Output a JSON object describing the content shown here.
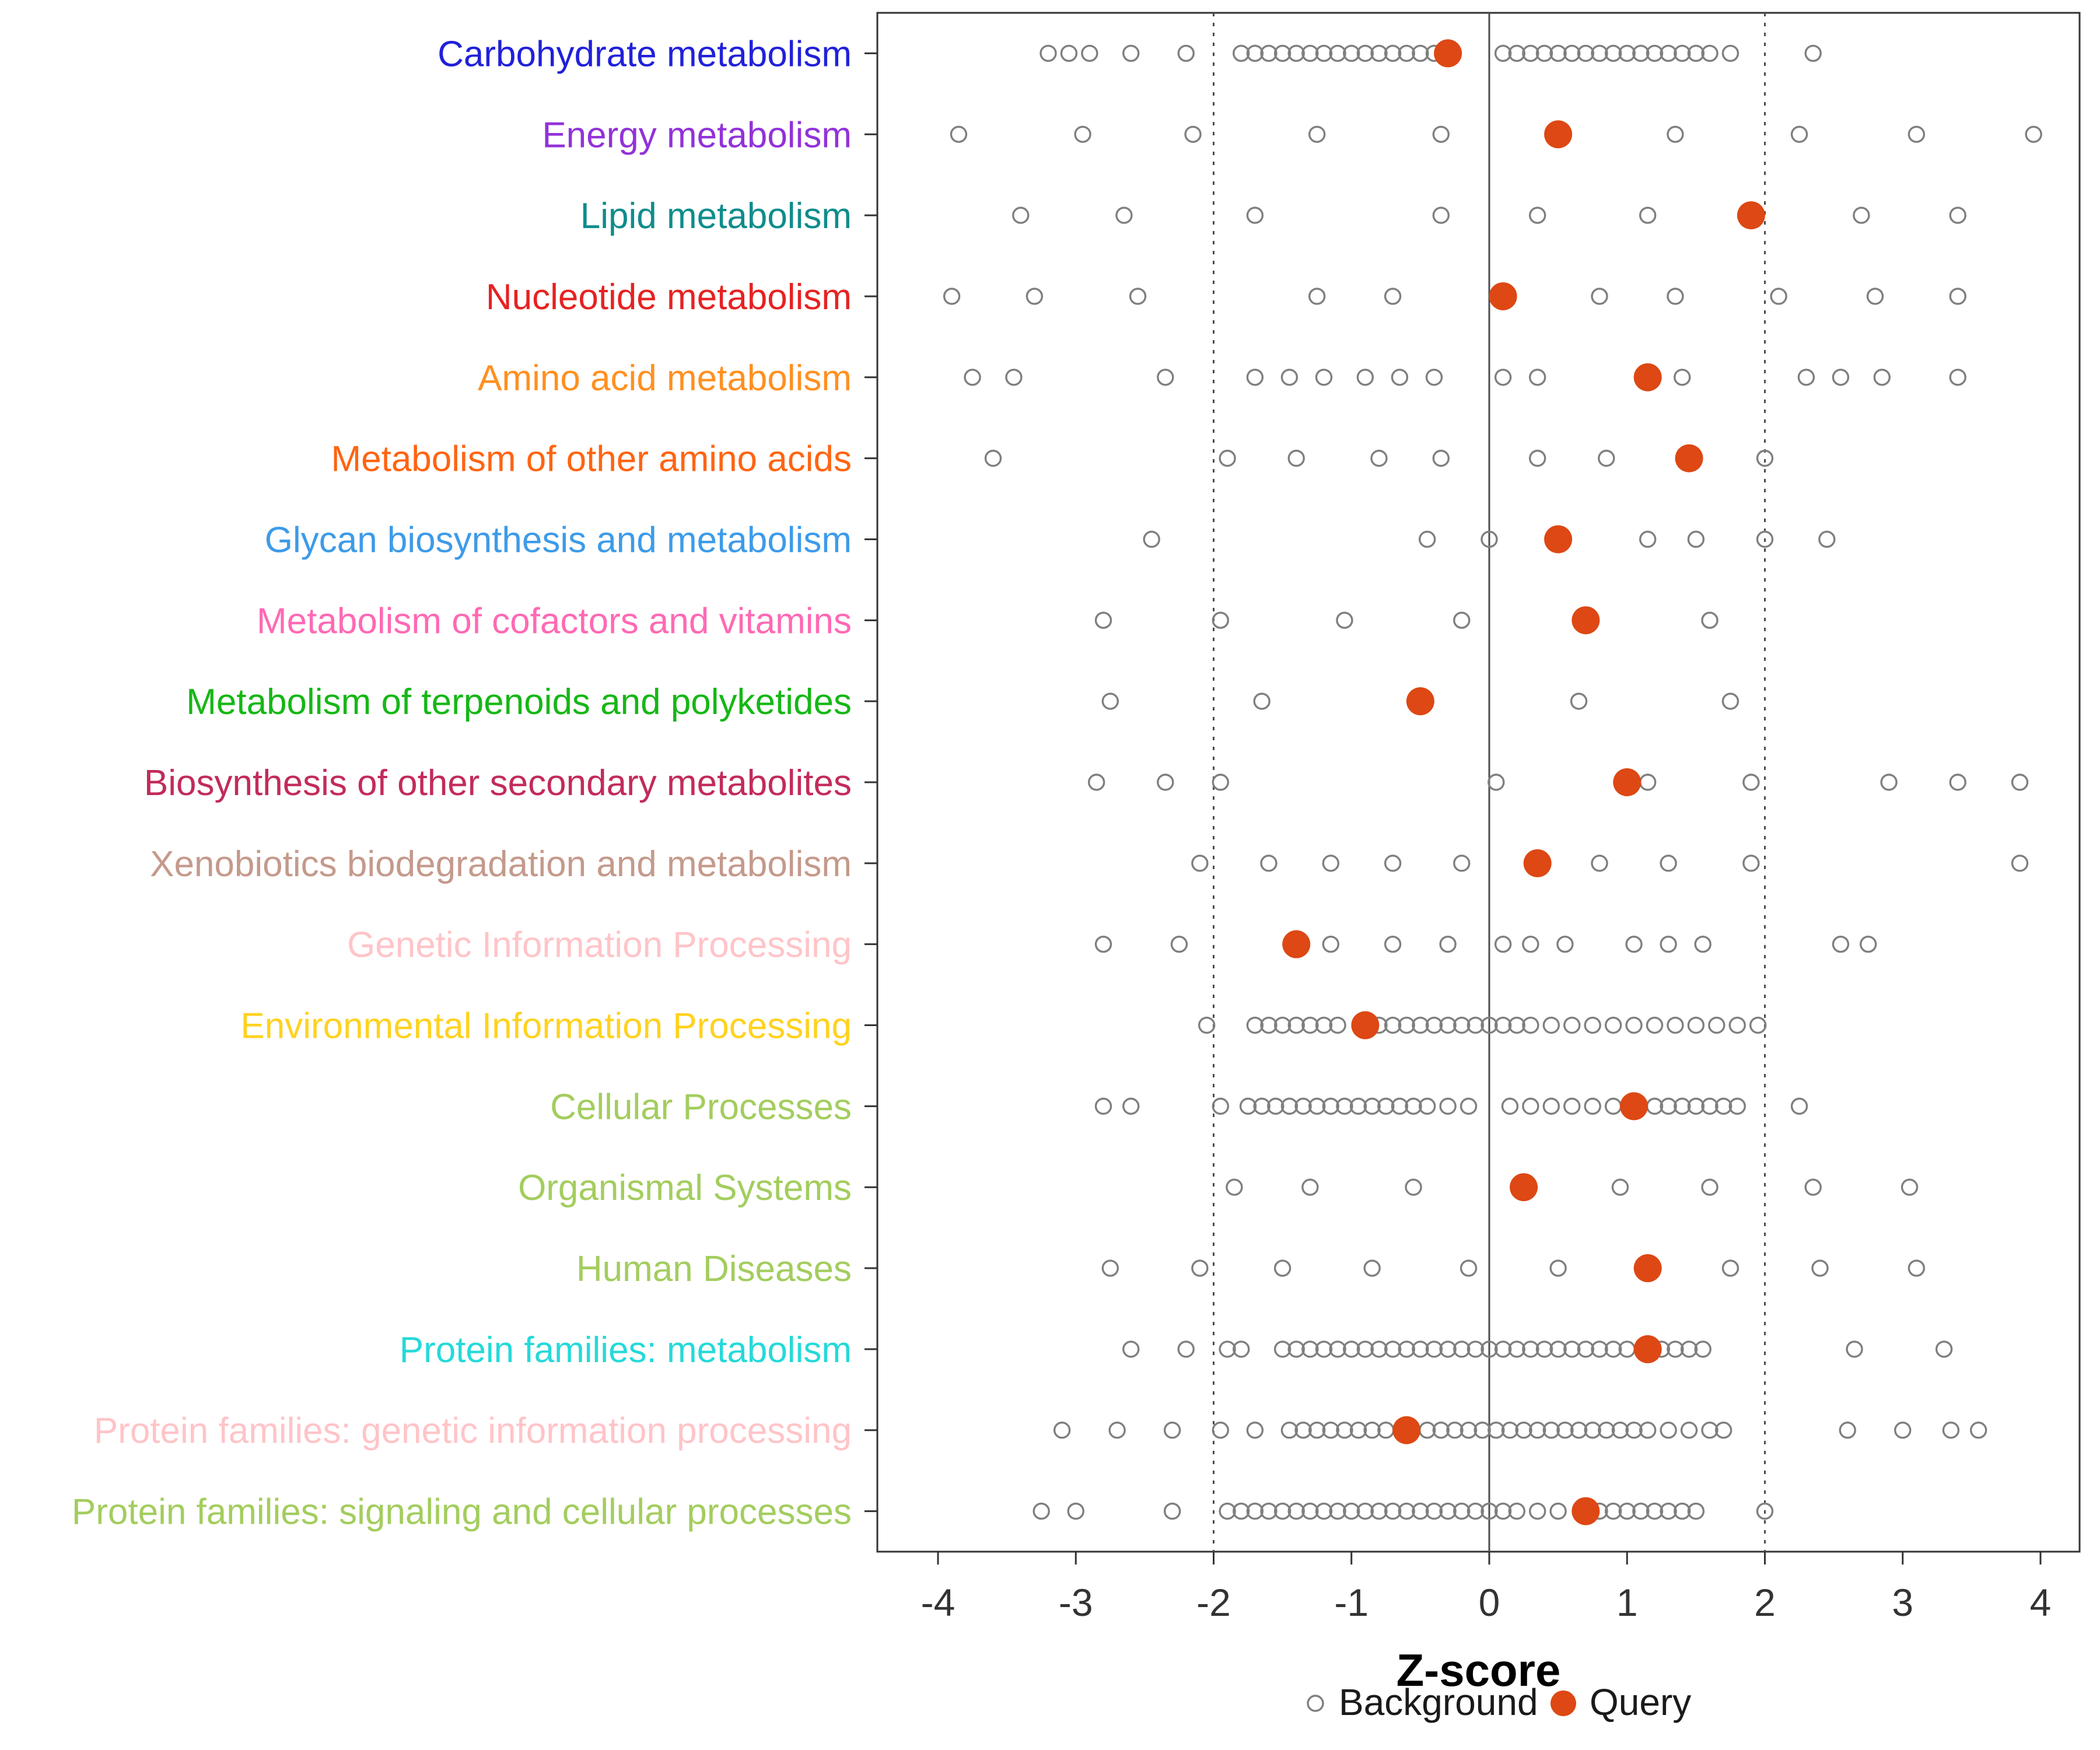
{
  "chart_data": {
    "type": "scatter",
    "title": "",
    "xlabel": "Z-score",
    "xlim": [
      -4.45,
      4.3
    ],
    "x_ticks": [
      -4,
      -3,
      -2,
      -1,
      0,
      1,
      2,
      3,
      4
    ],
    "grid": false,
    "reference_lines": {
      "solid": [
        0
      ],
      "dotted": [
        -2,
        2
      ]
    },
    "legend": {
      "position": "bottom",
      "background_label": "Background",
      "query_label": "Query"
    },
    "colors": {
      "query": "#DD4814",
      "background_stroke": "#7F7F7F",
      "axis_text": "#333333",
      "panel_border": "#333333",
      "ref_line": "#4D4D4D",
      "legend_text": "#1A1A1A"
    },
    "categories": [
      {
        "label": "Carbohydrate metabolism",
        "color": "#2121D9",
        "query": -0.3,
        "background": [
          -3.2,
          -3.05,
          -2.9,
          -2.6,
          -2.2,
          -1.8,
          -1.7,
          -1.6,
          -1.5,
          -1.4,
          -1.3,
          -1.2,
          -1.1,
          -1.0,
          -0.9,
          -0.8,
          -0.7,
          -0.6,
          -0.5,
          -0.4,
          0.1,
          0.2,
          0.3,
          0.4,
          0.5,
          0.6,
          0.7,
          0.8,
          0.9,
          1.0,
          1.1,
          1.2,
          1.3,
          1.4,
          1.5,
          1.6,
          1.75,
          2.35
        ]
      },
      {
        "label": "Energy metabolism",
        "color": "#9232D9",
        "query": 0.5,
        "background": [
          -3.85,
          -2.95,
          -2.15,
          -1.25,
          -0.35,
          1.35,
          2.25,
          3.1,
          3.95
        ]
      },
      {
        "label": "Lipid metabolism",
        "color": "#0F8C8C",
        "query": 1.9,
        "background": [
          -3.4,
          -2.65,
          -1.7,
          -0.35,
          0.35,
          1.15,
          2.7,
          3.4
        ]
      },
      {
        "label": "Nucleotide metabolism",
        "color": "#E62222",
        "query": 0.1,
        "background": [
          -3.9,
          -3.3,
          -2.55,
          -1.25,
          -0.7,
          0.8,
          1.35,
          2.1,
          2.8,
          3.4
        ]
      },
      {
        "label": "Amino acid metabolism",
        "color": "#FF9021",
        "query": 1.15,
        "background": [
          -3.75,
          -3.45,
          -2.35,
          -1.7,
          -1.45,
          -1.2,
          -0.9,
          -0.65,
          -0.4,
          0.1,
          0.35,
          1.4,
          2.3,
          2.55,
          2.85,
          3.4
        ]
      },
      {
        "label": "Metabolism of other amino acids",
        "color": "#FF6412",
        "query": 1.45,
        "background": [
          -3.6,
          -1.9,
          -1.4,
          -0.8,
          -0.35,
          0.35,
          0.85,
          2.0
        ]
      },
      {
        "label": "Glycan biosynthesis and metabolism",
        "color": "#3D9BE9",
        "query": 0.5,
        "background": [
          -2.45,
          -0.45,
          0.0,
          1.15,
          1.5,
          2.0,
          2.45
        ]
      },
      {
        "label": "Metabolism of cofactors and vitamins",
        "color": "#FF69B4",
        "query": 0.7,
        "background": [
          -2.8,
          -1.95,
          -1.05,
          -0.2,
          1.6
        ]
      },
      {
        "label": "Metabolism of terpenoids and polyketides",
        "color": "#16B716",
        "query": -0.5,
        "background": [
          -2.75,
          -1.65,
          0.65,
          1.75
        ]
      },
      {
        "label": "Biosynthesis of other secondary metabolites",
        "color": "#C22B5A",
        "query": 1.0,
        "background": [
          -2.85,
          -2.35,
          -1.95,
          0.05,
          1.15,
          1.9,
          2.9,
          3.4,
          3.85
        ]
      },
      {
        "label": "Xenobiotics biodegradation and metabolism",
        "color": "#C49A8C",
        "query": 0.35,
        "background": [
          -2.1,
          -1.6,
          -1.15,
          -0.7,
          -0.2,
          0.8,
          1.3,
          1.9,
          3.85
        ]
      },
      {
        "label": "Genetic Information Processing",
        "color": "#FFC4C8",
        "query": -1.4,
        "background": [
          -2.8,
          -2.25,
          -1.15,
          -0.7,
          -0.3,
          0.1,
          0.3,
          0.55,
          1.05,
          1.3,
          1.55,
          2.55,
          2.75
        ]
      },
      {
        "label": "Environmental Information Processing",
        "color": "#FFD21F",
        "query": -0.9,
        "background": [
          -2.05,
          -1.7,
          -1.6,
          -1.5,
          -1.4,
          -1.3,
          -1.2,
          -1.1,
          -0.8,
          -0.7,
          -0.6,
          -0.5,
          -0.4,
          -0.3,
          -0.2,
          -0.1,
          0.0,
          0.1,
          0.2,
          0.3,
          0.45,
          0.6,
          0.75,
          0.9,
          1.05,
          1.2,
          1.35,
          1.5,
          1.65,
          1.8,
          1.95
        ]
      },
      {
        "label": "Cellular Processes",
        "color": "#A3CD5E",
        "query": 1.05,
        "background": [
          -2.8,
          -2.6,
          -1.95,
          -1.75,
          -1.65,
          -1.55,
          -1.45,
          -1.35,
          -1.25,
          -1.15,
          -1.05,
          -0.95,
          -0.85,
          -0.75,
          -0.65,
          -0.55,
          -0.45,
          -0.3,
          -0.15,
          0.15,
          0.3,
          0.45,
          0.6,
          0.75,
          0.9,
          1.2,
          1.3,
          1.4,
          1.5,
          1.6,
          1.7,
          1.8,
          2.25
        ]
      },
      {
        "label": "Organismal Systems",
        "color": "#A3CD5E",
        "query": 0.25,
        "background": [
          -1.85,
          -1.3,
          -0.55,
          0.95,
          1.6,
          2.35,
          3.05
        ]
      },
      {
        "label": "Human Diseases",
        "color": "#A3CD5E",
        "query": 1.15,
        "background": [
          -2.75,
          -2.1,
          -1.5,
          -0.85,
          -0.15,
          0.5,
          1.75,
          2.4,
          3.1
        ]
      },
      {
        "label": "Protein families: metabolism",
        "color": "#26D9D9",
        "query": 1.15,
        "background": [
          -2.6,
          -2.2,
          -1.9,
          -1.8,
          -1.5,
          -1.4,
          -1.3,
          -1.2,
          -1.1,
          -1.0,
          -0.9,
          -0.8,
          -0.7,
          -0.6,
          -0.5,
          -0.4,
          -0.3,
          -0.2,
          -0.1,
          0.0,
          0.1,
          0.2,
          0.3,
          0.4,
          0.5,
          0.6,
          0.7,
          0.8,
          0.9,
          1.0,
          1.25,
          1.35,
          1.45,
          1.55,
          2.65,
          3.3
        ]
      },
      {
        "label": "Protein families: genetic information processing",
        "color": "#FFC4C8",
        "query": -0.6,
        "background": [
          -3.1,
          -2.7,
          -2.3,
          -1.95,
          -1.7,
          -1.45,
          -1.35,
          -1.25,
          -1.15,
          -1.05,
          -0.95,
          -0.85,
          -0.75,
          -0.45,
          -0.35,
          -0.25,
          -0.15,
          -0.05,
          0.05,
          0.15,
          0.25,
          0.35,
          0.45,
          0.55,
          0.65,
          0.75,
          0.85,
          0.95,
          1.05,
          1.15,
          1.3,
          1.45,
          1.6,
          1.7,
          2.6,
          3.0,
          3.35,
          3.55
        ]
      },
      {
        "label": "Protein families: signaling and cellular processes",
        "color": "#A3CD5E",
        "query": 0.7,
        "background": [
          -3.25,
          -3.0,
          -2.3,
          -1.9,
          -1.8,
          -1.7,
          -1.6,
          -1.5,
          -1.4,
          -1.3,
          -1.2,
          -1.1,
          -1.0,
          -0.9,
          -0.8,
          -0.7,
          -0.6,
          -0.5,
          -0.4,
          -0.3,
          -0.2,
          -0.1,
          0.0,
          0.1,
          0.2,
          0.35,
          0.5,
          0.8,
          0.9,
          1.0,
          1.1,
          1.2,
          1.3,
          1.4,
          1.5,
          2.0
        ]
      }
    ]
  }
}
